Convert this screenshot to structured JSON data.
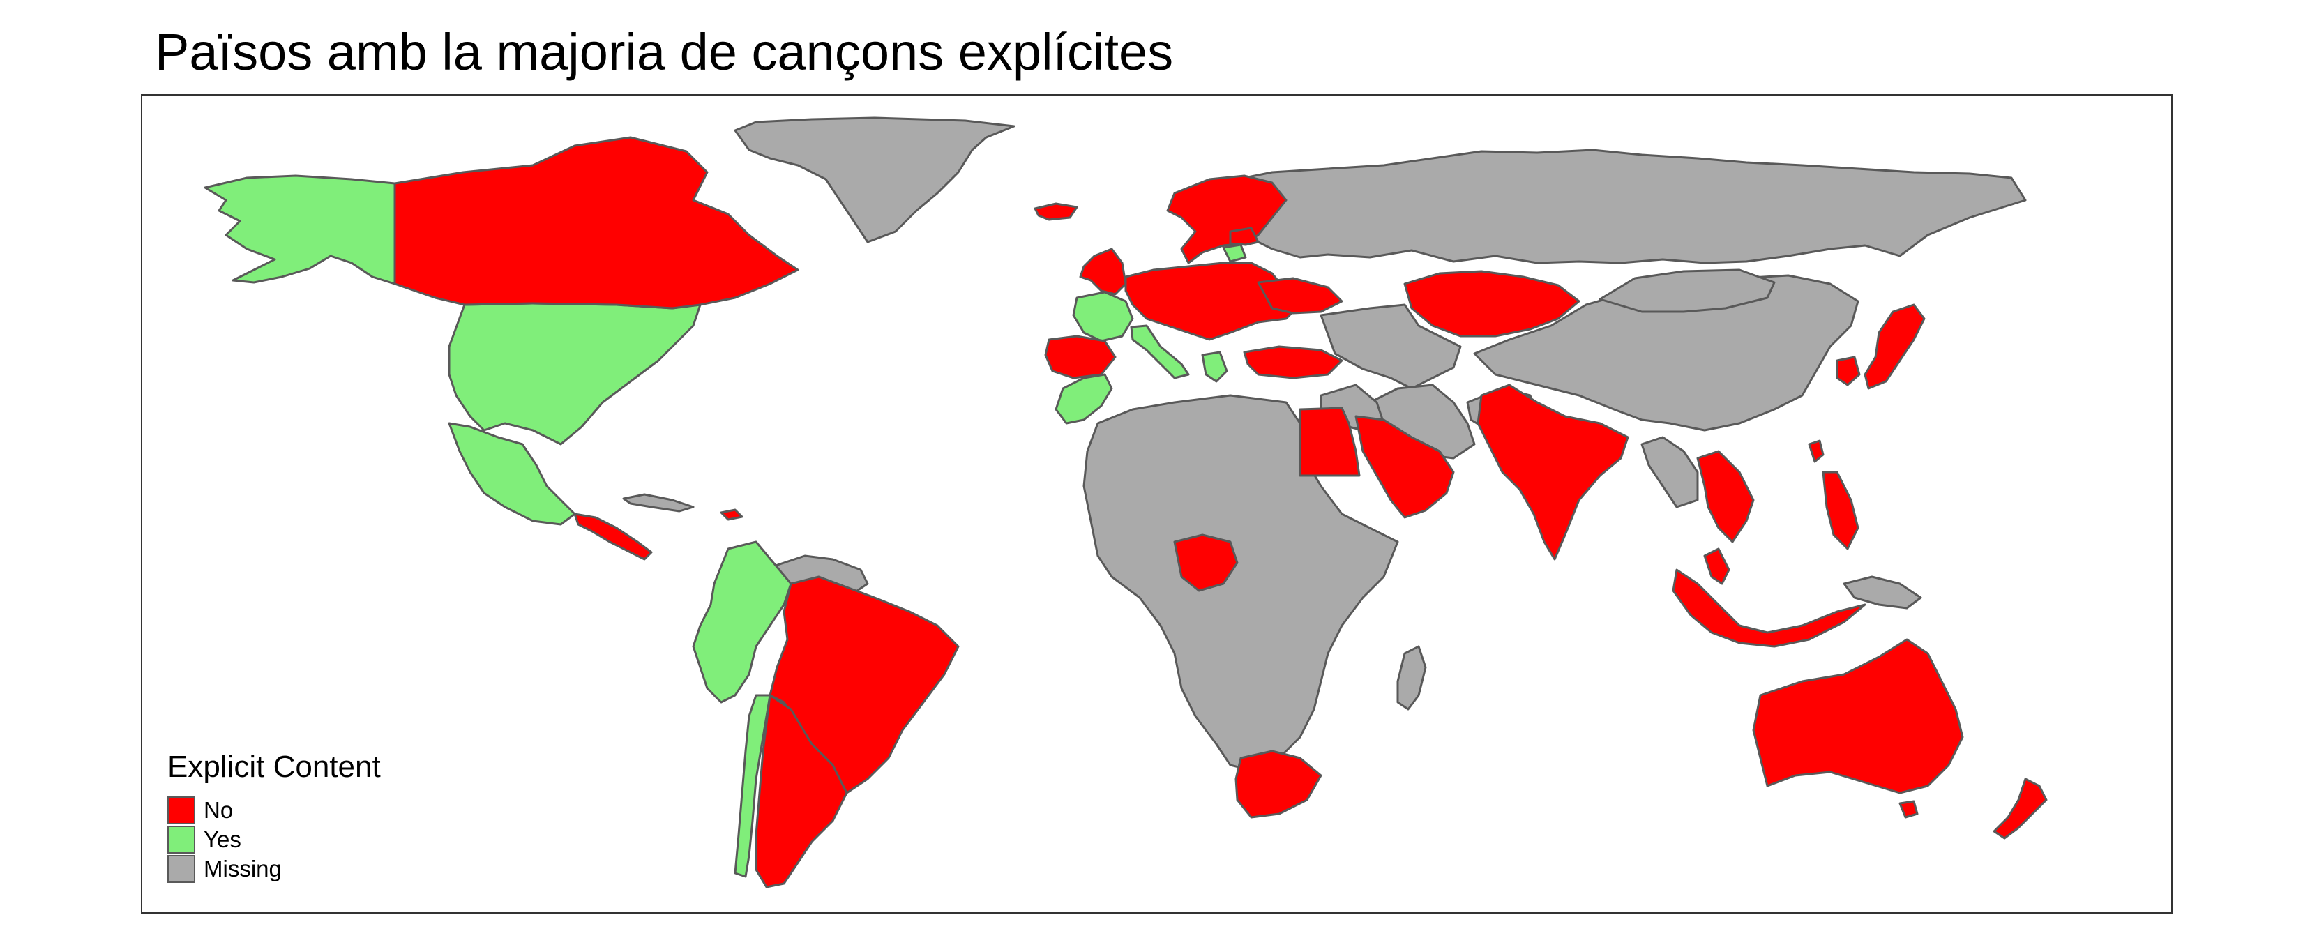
{
  "title": "Països amb la majoria de cançons explícites",
  "legend": {
    "title": "Explicit Content",
    "items": [
      {
        "label": "No",
        "color": "#FF0000"
      },
      {
        "label": "Yes",
        "color": "#80EE7A"
      },
      {
        "label": "Missing",
        "color": "#AAAAAA"
      }
    ]
  },
  "colors": {
    "No": "#FF0000",
    "Yes": "#80EE7A",
    "Missing": "#AAAAAA",
    "border": "#595959"
  },
  "countries": {
    "Yes": [
      "United States",
      "Mexico",
      "Guatemala",
      "Colombia",
      "Ecuador",
      "Peru",
      "Chile",
      "Morocco",
      "France",
      "Italy",
      "Greece",
      "Lithuania",
      "Alaska (United States)"
    ],
    "No": [
      "Canada",
      "Honduras",
      "El Salvador",
      "Nicaragua",
      "Costa Rica",
      "Panama",
      "Dominican Republic",
      "Brazil",
      "Bolivia",
      "Paraguay",
      "Uruguay",
      "Argentina",
      "Iceland",
      "Ireland",
      "United Kingdom",
      "Norway",
      "Sweden",
      "Finland",
      "Estonia",
      "Latvia",
      "Denmark",
      "Netherlands",
      "Belgium",
      "Germany",
      "Poland",
      "Czechia",
      "Slovakia",
      "Austria",
      "Switzerland",
      "Hungary",
      "Romania",
      "Bulgaria",
      "Ukraine",
      "Spain",
      "Portugal",
      "Turkey",
      "Kazakhstan",
      "Egypt",
      "Saudi Arabia",
      "United Arab Emirates",
      "Israel",
      "Pakistan",
      "India",
      "Nigeria",
      "South Africa",
      "Thailand",
      "Vietnam",
      "Malaysia",
      "Singapore",
      "Indonesia",
      "Philippines",
      "Taiwan",
      "Hong Kong",
      "Japan",
      "South Korea",
      "Australia",
      "New Zealand"
    ],
    "Missing": [
      "Greenland",
      "Russia",
      "China",
      "Mongolia",
      "Afghanistan",
      "Iran",
      "Iraq",
      "Central Asia",
      "Africa (other)",
      "Madagascar",
      "Venezuela",
      "Guianas",
      "Cuba",
      "Papua New Guinea",
      "Myanmar",
      "Laos",
      "Cambodia"
    ]
  }
}
